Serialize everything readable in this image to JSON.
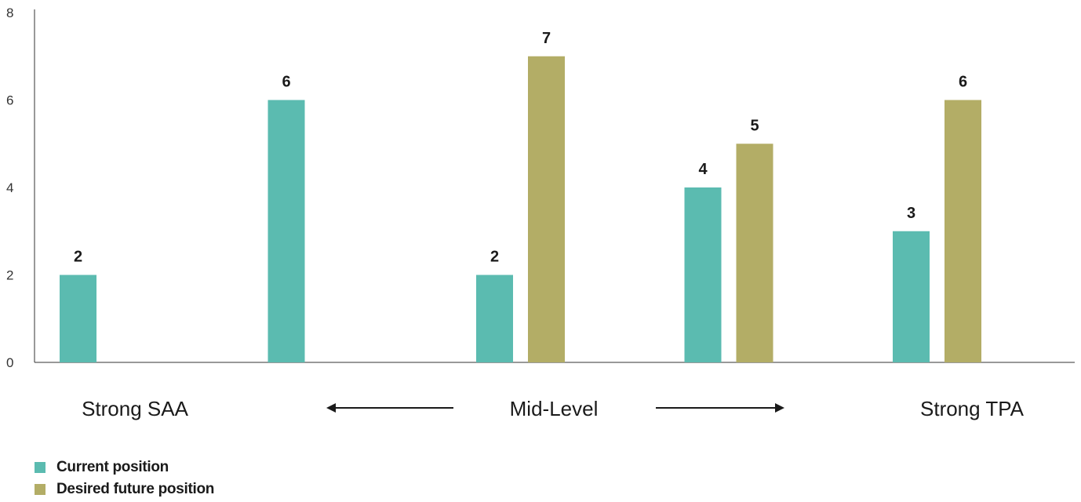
{
  "chart_data": {
    "type": "bar",
    "groups": 5,
    "series": [
      {
        "name": "Current position",
        "color": "#5bbbb0",
        "values": [
          2,
          6,
          2,
          4,
          3
        ]
      },
      {
        "name": "Desired future position",
        "color": "#b3ad66",
        "values": [
          null,
          null,
          7,
          5,
          6
        ]
      }
    ],
    "axis_labels": [
      {
        "text": "Strong SAA",
        "group": 0
      },
      {
        "text": "Mid-Level",
        "group": 2
      },
      {
        "text": "Strong TPA",
        "group": 4
      }
    ],
    "arrows": [
      "left",
      "right"
    ],
    "ylim": [
      0,
      8
    ],
    "yticks": [
      0,
      2,
      4,
      6,
      8
    ],
    "grid": false,
    "legend_position": "bottom-left"
  }
}
